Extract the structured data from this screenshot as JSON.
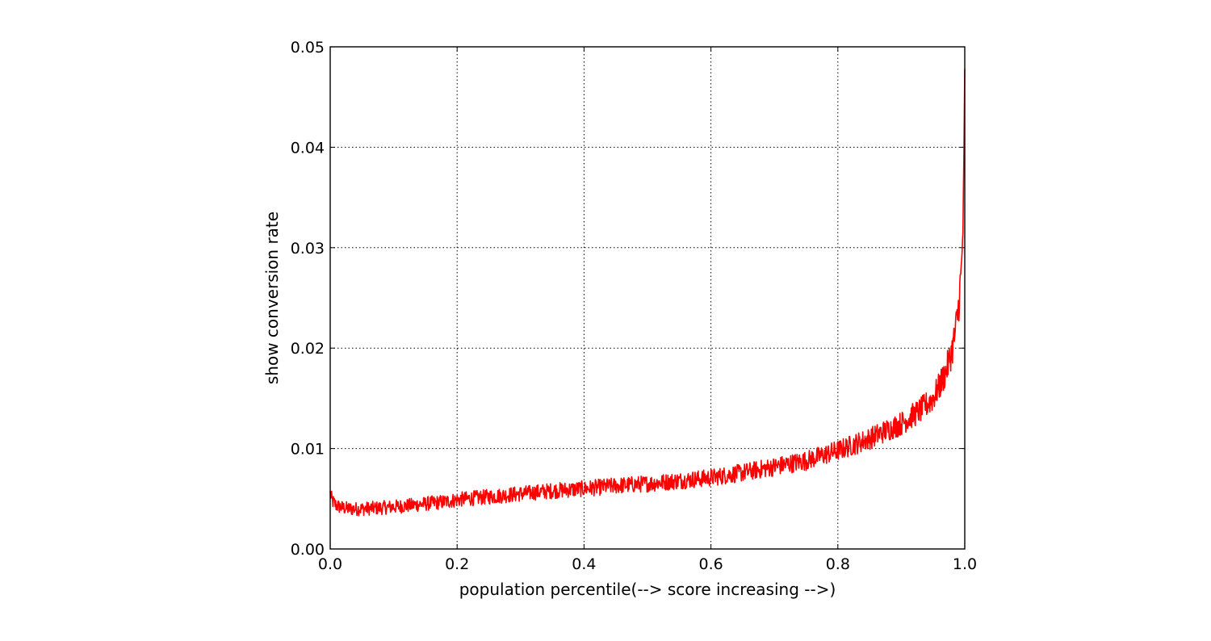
{
  "chart_data": {
    "type": "line",
    "title": "",
    "xlabel": "population percentile(--> score increasing -->)",
    "ylabel": "show conversion rate",
    "xlim": [
      0.0,
      1.0
    ],
    "ylim": [
      0.0,
      0.05
    ],
    "grid": true,
    "xticks": [
      0.0,
      0.2,
      0.4,
      0.6,
      0.8,
      1.0
    ],
    "xtick_labels": [
      "0.0",
      "0.2",
      "0.4",
      "0.6",
      "0.8",
      "1.0"
    ],
    "yticks": [
      0.0,
      0.01,
      0.02,
      0.03,
      0.04,
      0.05
    ],
    "ytick_labels": [
      "0.00",
      "0.01",
      "0.02",
      "0.03",
      "0.04",
      "0.05"
    ],
    "series": [
      {
        "color": "#ff0000",
        "x": [
          0.0,
          0.003,
          0.01,
          0.02,
          0.03,
          0.05,
          0.08,
          0.1,
          0.12,
          0.15,
          0.18,
          0.2,
          0.25,
          0.3,
          0.35,
          0.4,
          0.45,
          0.5,
          0.55,
          0.6,
          0.65,
          0.7,
          0.75,
          0.8,
          0.85,
          0.9,
          0.93,
          0.95,
          0.96,
          0.97,
          0.98,
          0.985,
          0.99,
          0.995,
          0.998,
          1.0
        ],
        "y": [
          0.0055,
          0.0048,
          0.0043,
          0.0041,
          0.004,
          0.004,
          0.0041,
          0.0042,
          0.0043,
          0.0045,
          0.0047,
          0.0049,
          0.0052,
          0.0055,
          0.0058,
          0.006,
          0.0063,
          0.0065,
          0.0068,
          0.0071,
          0.0076,
          0.0082,
          0.0088,
          0.0098,
          0.011,
          0.0125,
          0.0138,
          0.015,
          0.0162,
          0.0176,
          0.0198,
          0.0215,
          0.024,
          0.028,
          0.034,
          0.046
        ]
      }
    ]
  }
}
